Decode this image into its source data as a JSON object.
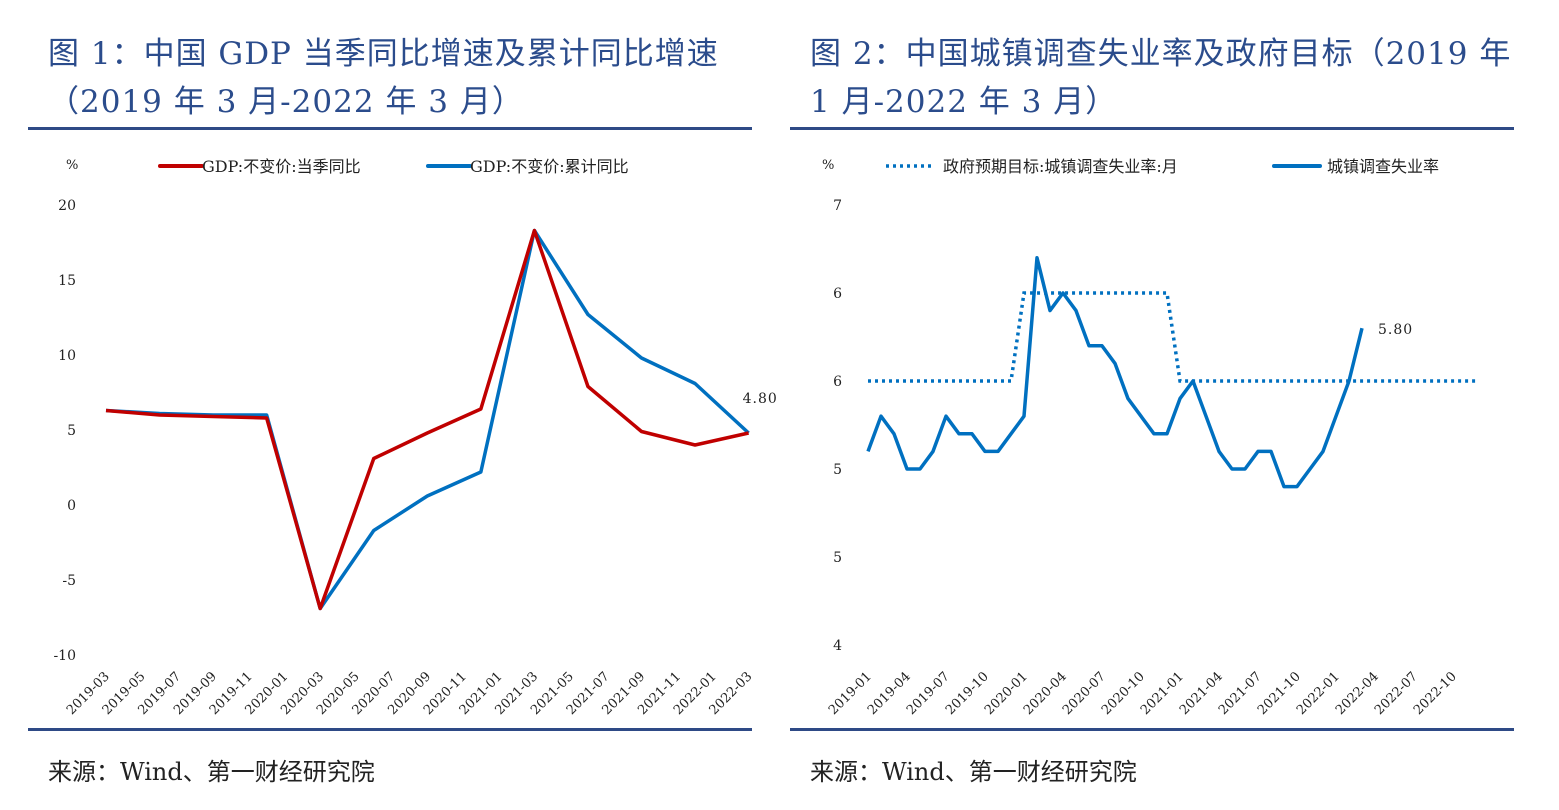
{
  "left": {
    "title": "图 1：中国 GDP 当季同比增速及累计同比增速（2019 年 3 月-2022 年 3 月）",
    "title_line1": "图 1：中国 GDP 当季同比增速及累计同比增速",
    "title_line2": "（2019 年 3 月-2022 年 3 月）",
    "source": "来源：Wind、第一财经研究院"
  },
  "right": {
    "title_line1": "图 2：中国城镇调查失业率及政府目标（2019 年",
    "title_line2": "1 月-2022 年 3 月）",
    "source": "来源：Wind、第一财经研究院"
  },
  "chart_data": [
    {
      "type": "line",
      "ylabel": "%",
      "ylim": [
        -10,
        20
      ],
      "yticks": [
        20,
        15,
        10,
        5,
        0,
        -5,
        -10
      ],
      "xticks": [
        "2019-03",
        "2019-05",
        "2019-07",
        "2019-09",
        "2019-11",
        "2020-01",
        "2020-03",
        "2020-05",
        "2020-07",
        "2020-09",
        "2020-11",
        "2021-01",
        "2021-03",
        "2021-05",
        "2021-07",
        "2021-09",
        "2021-11",
        "2022-01",
        "2022-03"
      ],
      "x": [
        "2019-03",
        "2019-06",
        "2019-09",
        "2019-12",
        "2020-03",
        "2020-06",
        "2020-09",
        "2020-12",
        "2021-03",
        "2021-06",
        "2021-09",
        "2021-12",
        "2022-03"
      ],
      "legend": "top",
      "series": [
        {
          "name": "GDP:不变价:当季同比",
          "color": "#c00000",
          "values": [
            6.3,
            6.0,
            5.9,
            5.8,
            -6.9,
            3.1,
            4.8,
            6.4,
            18.3,
            7.9,
            4.9,
            4.0,
            4.8
          ]
        },
        {
          "name": "GDP:不变价:累计同比",
          "color": "#0070c0",
          "values": [
            6.3,
            6.1,
            6.0,
            6.0,
            -6.9,
            -1.7,
            0.6,
            2.2,
            18.3,
            12.7,
            9.8,
            8.1,
            4.8
          ]
        }
      ],
      "annotations": [
        {
          "x": "2022-03",
          "text": "4.80"
        }
      ]
    },
    {
      "type": "line",
      "ylabel": "%",
      "ylim": [
        4,
        6.5
      ],
      "yticks": [
        6.5,
        6.0,
        5.5,
        5.0,
        4.5,
        4.0
      ],
      "ytick_labels": [
        "7",
        "6",
        "6",
        "5",
        "5",
        "4"
      ],
      "xticks": [
        "2019-01",
        "2019-04",
        "2019-07",
        "2019-10",
        "2020-01",
        "2020-04",
        "2020-07",
        "2020-10",
        "2021-01",
        "2021-04",
        "2021-07",
        "2021-10",
        "2022-01",
        "2022-04",
        "2022-07",
        "2022-10"
      ],
      "legend": "top",
      "series": [
        {
          "name": "政府预期目标:城镇调查失业率:月",
          "color": "#0070c0",
          "style": "dotted",
          "segments": [
            {
              "from": "2019-01",
              "to": "2019-12",
              "value": 5.5
            },
            {
              "from": "2020-01",
              "to": "2020-12",
              "value": 6.0
            },
            {
              "from": "2021-01",
              "to": "2022-12",
              "value": 5.5
            }
          ]
        },
        {
          "name": "城镇调查失业率",
          "color": "#0070c0",
          "style": "solid",
          "start": "2019-01",
          "values": [
            5.1,
            5.3,
            5.2,
            5.0,
            5.0,
            5.1,
            5.3,
            5.2,
            5.2,
            5.1,
            5.1,
            5.2,
            5.3,
            6.2,
            5.9,
            6.0,
            5.9,
            5.7,
            5.7,
            5.6,
            5.4,
            5.3,
            5.2,
            5.2,
            5.4,
            5.5,
            5.3,
            5.1,
            5.0,
            5.0,
            5.1,
            5.1,
            4.9,
            4.9,
            5.0,
            5.1,
            5.3,
            5.5,
            5.8
          ]
        }
      ],
      "annotations": [
        {
          "x": "2022-03",
          "text": "5.80"
        }
      ]
    }
  ]
}
